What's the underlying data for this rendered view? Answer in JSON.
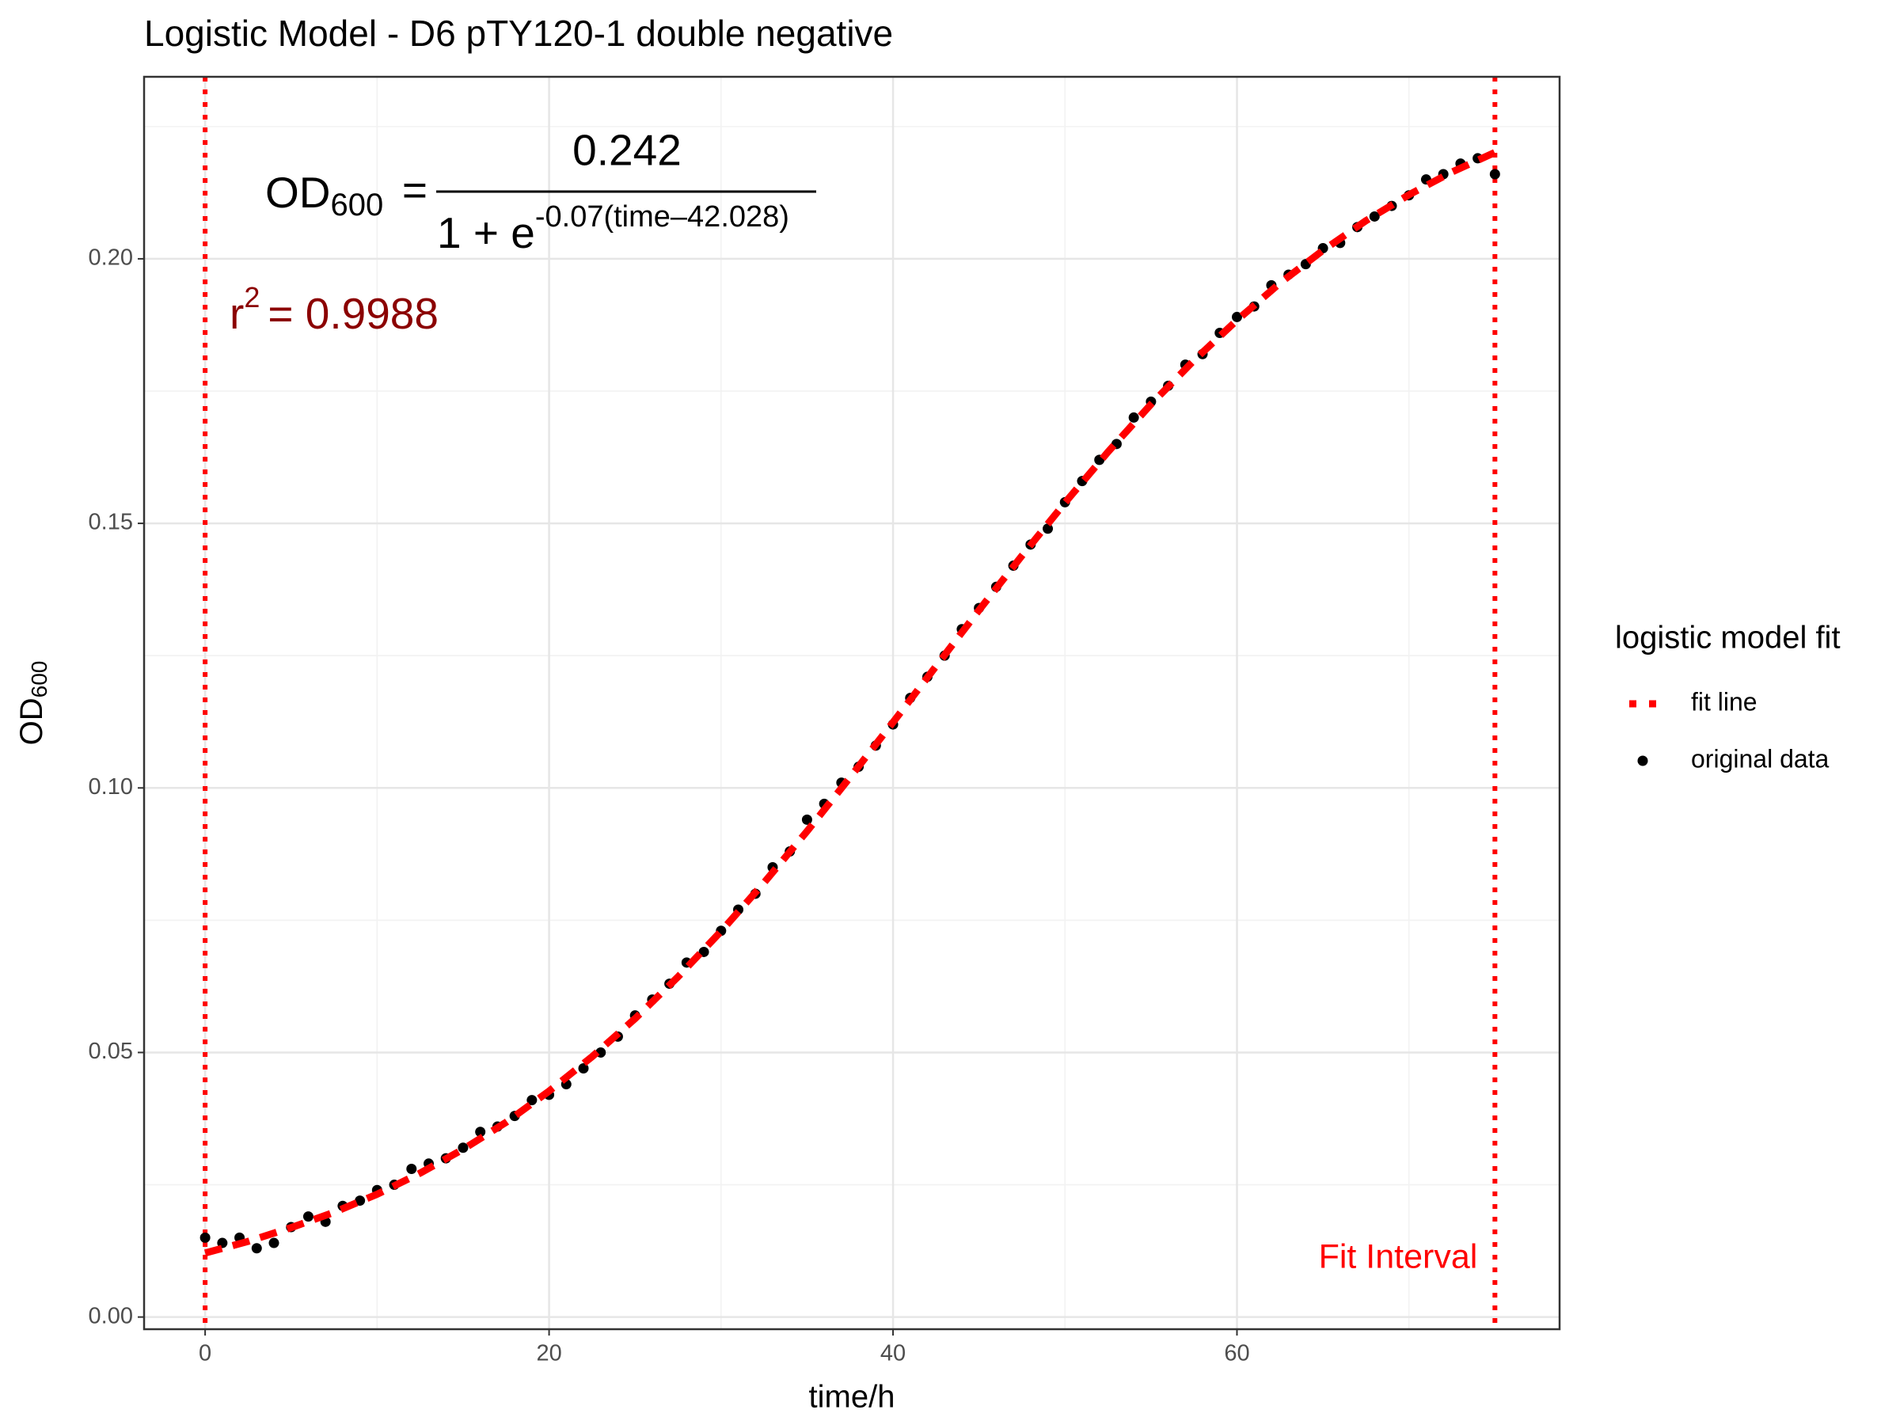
{
  "chart_data": {
    "type": "scatter",
    "title": "Logistic Model -  D6 pTY120-1 double negative",
    "x_label": "time/h",
    "y_label": {
      "main": "OD",
      "sub": "600"
    },
    "xlim": [
      -3.55,
      78.76
    ],
    "xticks": [
      0,
      20,
      40,
      60
    ],
    "ylim": [
      -0.0023,
      0.2344
    ],
    "yticks": [
      {
        "value": 0,
        "label": "0.00"
      },
      {
        "value": 0.05,
        "label": "0.05"
      },
      {
        "value": 0.1,
        "label": "0.10"
      },
      {
        "value": 0.15,
        "label": "0.15"
      },
      {
        "value": 0.2,
        "label": "0.20"
      }
    ],
    "grid": true,
    "legend": {
      "title": "logistic model fit",
      "position": "right"
    },
    "series": [
      {
        "name": "fit line",
        "kind": "line",
        "color": "#ff0000",
        "x": [
          0,
          2.5,
          5,
          7.5,
          10,
          12.5,
          15,
          17.5,
          20,
          22.5,
          25,
          27.5,
          30,
          32.5,
          35,
          37.5,
          40,
          42.5,
          45,
          47.5,
          50,
          52.5,
          55,
          57.5,
          60,
          62.5,
          65,
          67.5,
          70,
          72.5,
          75
        ],
        "values": [
          0.0121,
          0.0143,
          0.0169,
          0.0198,
          0.0232,
          0.0272,
          0.0317,
          0.0368,
          0.0427,
          0.0492,
          0.0564,
          0.0643,
          0.0729,
          0.0821,
          0.0918,
          0.102,
          0.1124,
          0.123,
          0.1336,
          0.1439,
          0.1539,
          0.1635,
          0.1725,
          0.1808,
          0.1884,
          0.1954,
          0.2016,
          0.2072,
          0.2121,
          0.2164,
          0.2201
        ]
      },
      {
        "name": "original data",
        "kind": "points",
        "color": "#000000",
        "x": [
          0,
          1,
          2,
          3,
          4,
          5,
          6,
          7,
          8,
          9,
          10,
          11,
          12,
          13,
          14,
          15,
          16,
          17,
          18,
          19,
          20,
          21,
          22,
          23,
          24,
          25,
          26,
          27,
          28,
          29,
          30,
          31,
          32,
          33,
          34,
          35,
          36,
          37,
          38,
          39,
          40,
          41,
          42,
          43,
          44,
          45,
          46,
          47,
          48,
          49,
          50,
          51,
          52,
          53,
          54,
          55,
          56,
          57,
          58,
          59,
          60,
          61,
          62,
          63,
          64,
          65,
          66,
          67,
          68,
          69,
          70,
          71,
          72,
          73,
          74,
          75
        ],
        "values": [
          0.015,
          0.014,
          0.015,
          0.013,
          0.014,
          0.017,
          0.019,
          0.018,
          0.021,
          0.022,
          0.024,
          0.025,
          0.028,
          0.029,
          0.03,
          0.032,
          0.035,
          0.036,
          0.038,
          0.041,
          0.042,
          0.044,
          0.047,
          0.05,
          0.053,
          0.057,
          0.06,
          0.063,
          0.067,
          0.069,
          0.073,
          0.077,
          0.08,
          0.085,
          0.088,
          0.094,
          0.097,
          0.101,
          0.104,
          0.108,
          0.112,
          0.117,
          0.121,
          0.125,
          0.13,
          0.134,
          0.138,
          0.142,
          0.146,
          0.149,
          0.154,
          0.158,
          0.162,
          0.165,
          0.17,
          0.173,
          0.176,
          0.18,
          0.182,
          0.186,
          0.189,
          0.191,
          0.195,
          0.197,
          0.199,
          0.202,
          0.203,
          0.206,
          0.208,
          0.21,
          0.212,
          0.215,
          0.216,
          0.218,
          0.219,
          0.216
        ]
      }
    ],
    "fit_interval": {
      "x": [
        0,
        75
      ],
      "label": "Fit Interval",
      "color": "#ff0000"
    },
    "equation": {
      "lhs": "OD",
      "lhs_sub": "600",
      "equals": "=",
      "numerator": "0.242",
      "denominator": "1 + e",
      "exponent": "-0.07(time–42.028)"
    },
    "r_squared": {
      "symbol": "r",
      "power": "2",
      "text": "= 0.9988",
      "color": "#8b0000"
    }
  }
}
